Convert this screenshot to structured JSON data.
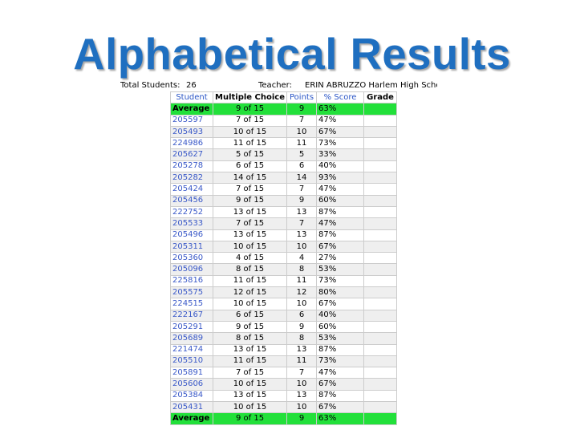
{
  "title": "Alphabetical Results",
  "info": {
    "total_label": "Total Students:",
    "total_value": "26",
    "teacher_label": "Teacher:",
    "teacher_value": "ERIN ABRUZZO Harlem High Schoo"
  },
  "table": {
    "headers": [
      "Student",
      "Multiple Choice",
      "Points",
      "% Score",
      "Grade"
    ],
    "average": {
      "student": "Average",
      "mc": "9 of 15",
      "points": "9",
      "score": "63%",
      "grade": ""
    },
    "rows": [
      {
        "student": "205597",
        "mc": "7 of 15",
        "points": "7",
        "score": "47%"
      },
      {
        "student": "205493",
        "mc": "10 of 15",
        "points": "10",
        "score": "67%"
      },
      {
        "student": "224986",
        "mc": "11 of 15",
        "points": "11",
        "score": "73%"
      },
      {
        "student": "205627",
        "mc": "5 of 15",
        "points": "5",
        "score": "33%"
      },
      {
        "student": "205278",
        "mc": "6 of 15",
        "points": "6",
        "score": "40%"
      },
      {
        "student": "205282",
        "mc": "14 of 15",
        "points": "14",
        "score": "93%"
      },
      {
        "student": "205424",
        "mc": "7 of 15",
        "points": "7",
        "score": "47%"
      },
      {
        "student": "205456",
        "mc": "9 of 15",
        "points": "9",
        "score": "60%"
      },
      {
        "student": "222752",
        "mc": "13 of 15",
        "points": "13",
        "score": "87%"
      },
      {
        "student": "205533",
        "mc": "7 of 15",
        "points": "7",
        "score": "47%"
      },
      {
        "student": "205496",
        "mc": "13 of 15",
        "points": "13",
        "score": "87%"
      },
      {
        "student": "205311",
        "mc": "10 of 15",
        "points": "10",
        "score": "67%"
      },
      {
        "student": "205360",
        "mc": "4 of 15",
        "points": "4",
        "score": "27%"
      },
      {
        "student": "205096",
        "mc": "8 of 15",
        "points": "8",
        "score": "53%"
      },
      {
        "student": "225816",
        "mc": "11 of 15",
        "points": "11",
        "score": "73%"
      },
      {
        "student": "205575",
        "mc": "12 of 15",
        "points": "12",
        "score": "80%"
      },
      {
        "student": "224515",
        "mc": "10 of 15",
        "points": "10",
        "score": "67%"
      },
      {
        "student": "222167",
        "mc": "6 of 15",
        "points": "6",
        "score": "40%"
      },
      {
        "student": "205291",
        "mc": "9 of 15",
        "points": "9",
        "score": "60%"
      },
      {
        "student": "205689",
        "mc": "8 of 15",
        "points": "8",
        "score": "53%"
      },
      {
        "student": "221474",
        "mc": "13 of 15",
        "points": "13",
        "score": "87%"
      },
      {
        "student": "205510",
        "mc": "11 of 15",
        "points": "11",
        "score": "73%"
      },
      {
        "student": "205891",
        "mc": "7 of 15",
        "points": "7",
        "score": "47%"
      },
      {
        "student": "205606",
        "mc": "10 of 15",
        "points": "10",
        "score": "67%"
      },
      {
        "student": "205384",
        "mc": "13 of 15",
        "points": "13",
        "score": "87%"
      },
      {
        "student": "205431",
        "mc": "10 of 15",
        "points": "10",
        "score": "67%"
      }
    ]
  },
  "colors": {
    "title": "#1f6fc0",
    "average_row": "#22e03a",
    "student_link": "#3a59c8",
    "alt_row": "#efefef"
  }
}
